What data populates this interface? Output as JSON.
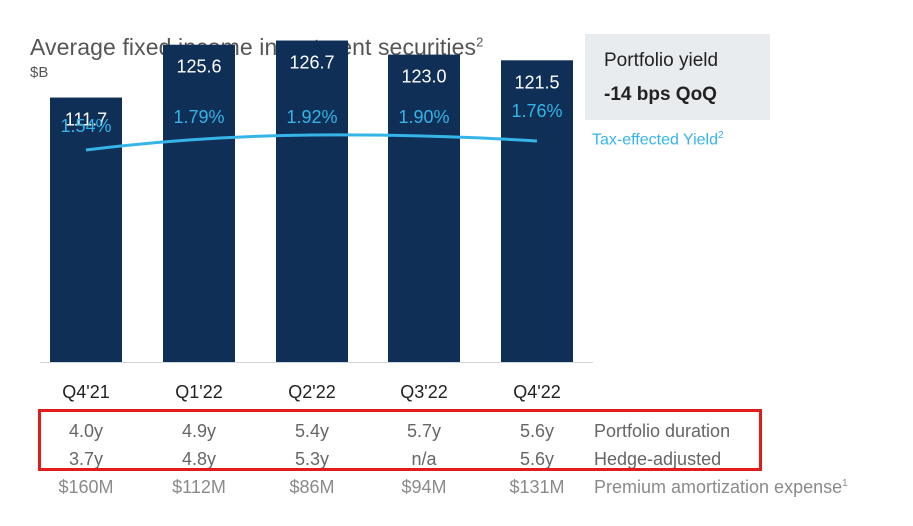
{
  "chart_data": {
    "type": "bar",
    "title": "Average fixed income investment securities",
    "title_sup": "2",
    "unit": "$B",
    "categories": [
      "Q4'21",
      "Q1'22",
      "Q2'22",
      "Q3'22",
      "Q4'22"
    ],
    "values": [
      111.7,
      125.6,
      126.7,
      123.0,
      121.5
    ],
    "value_labels": [
      "111.7",
      "125.6",
      "126.7",
      "123.0",
      "121.5"
    ],
    "ylim": [
      0,
      150
    ],
    "line_series": {
      "name": "Tax-effected Yield",
      "name_sup": "2",
      "values": [
        1.54,
        1.79,
        1.92,
        1.9,
        1.76
      ],
      "labels": [
        "1.54%",
        "1.79%",
        "1.92%",
        "1.90%",
        "1.76%"
      ]
    },
    "bar_color": "#0f2f56",
    "line_color": "#35b4e8"
  },
  "yield_box": {
    "line1": "Portfolio yield",
    "line2": "-14 bps QoQ"
  },
  "table_rows": [
    {
      "label": "Portfolio duration",
      "values": [
        "4.0y",
        "4.9y",
        "5.4y",
        "5.7y",
        "5.6y"
      ]
    },
    {
      "label": "Hedge-adjusted",
      "values": [
        "3.7y",
        "4.8y",
        "5.3y",
        "n/a",
        "5.6y"
      ]
    },
    {
      "label": "Premium amortization expense",
      "label_sup": "1",
      "values": [
        "$160M",
        "$112M",
        "$86M",
        "$94M",
        "$131M"
      ]
    }
  ]
}
